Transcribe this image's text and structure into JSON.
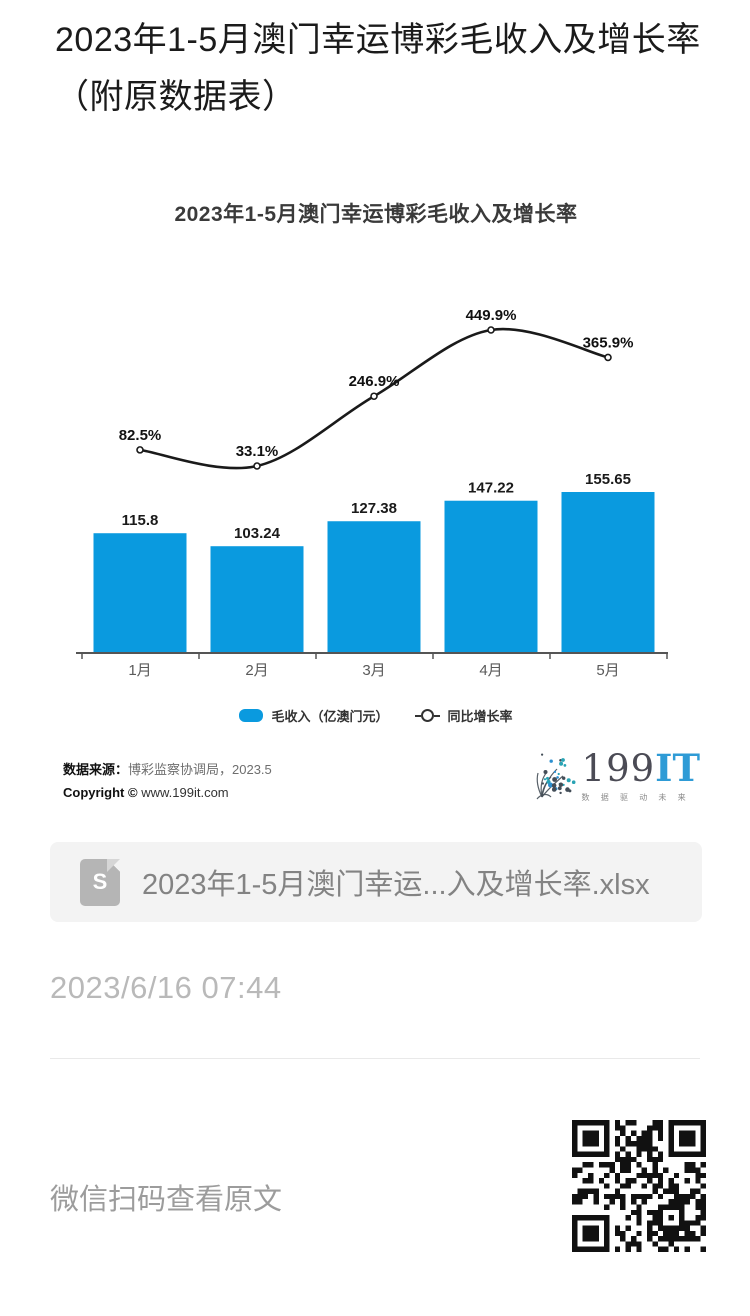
{
  "page": {
    "title": "2023年1-5月澳门幸运博彩毛收入及增长率（附原数据表）",
    "post_date": "2023/6/16 07:44",
    "qr_caption": "微信扫码查看原文"
  },
  "attachment": {
    "filename": "2023年1-5月澳门幸运...入及增长率.xlsx",
    "icon_label": "S"
  },
  "chart": {
    "source_label": "数据来源：",
    "source_value": "博彩监察协调局，2023.5",
    "copyright_label": "Copyright ©",
    "copyright_value": "www.199it.com"
  },
  "logo": {
    "text_main": "199",
    "text_accent": "IT",
    "tagline": "数 据 驱 动 未 来",
    "accent_color": "#2E9BD6"
  },
  "chart_data": {
    "type": "bar+line combo",
    "title": "2023年1-5月澳门幸运博彩毛收入及增长率",
    "categories": [
      "1月",
      "2月",
      "3月",
      "4月",
      "5月"
    ],
    "series": [
      {
        "name": "毛收入（亿澳门元）",
        "type": "bar",
        "values": [
          115.8,
          103.24,
          127.38,
          147.22,
          155.65
        ],
        "labels": [
          "115.8",
          "103.24",
          "127.38",
          "147.22",
          "155.65"
        ],
        "color": "#0A9ADF"
      },
      {
        "name": "同比增长率",
        "type": "line",
        "values": [
          82.5,
          33.1,
          246.9,
          449.9,
          365.9
        ],
        "labels": [
          "82.5%",
          "33.1%",
          "246.9%",
          "449.9%",
          "365.9%"
        ],
        "color": "#1A1A1A",
        "marker": "open-circle",
        "smooth": true
      }
    ],
    "xlabel": "",
    "ylabel": "",
    "bar_ylim": [
      0,
      170
    ],
    "line_ylim_pct": [
      0,
      500
    ],
    "grid": false,
    "y_axis_visible": false,
    "legend_position": "bottom"
  }
}
